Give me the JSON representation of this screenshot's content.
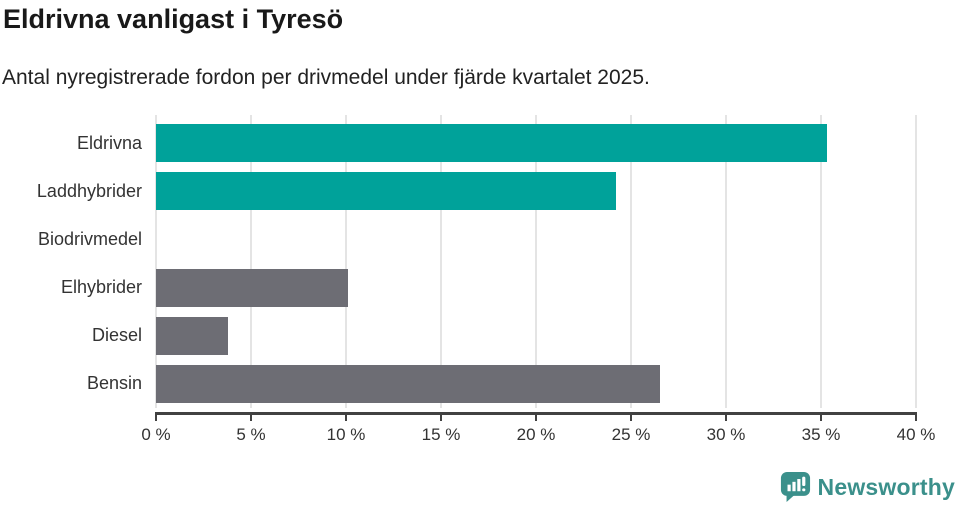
{
  "header": {
    "title": "Eldrivna vanligast i Tyresö",
    "subtitle": "Antal nyregistrerade fordon per drivmedel under fjärde kvartalet 2025."
  },
  "chart_data": {
    "type": "bar",
    "orientation": "horizontal",
    "title": "Eldrivna vanligast i Tyresö",
    "subtitle": "Antal nyregistrerade fordon per drivmedel under fjärde kvartalet 2025.",
    "categories": [
      "Eldrivna",
      "Laddhybrider",
      "Biodrivmedel",
      "Elhybrider",
      "Diesel",
      "Bensin"
    ],
    "values": [
      35.3,
      24.2,
      0,
      10.1,
      3.8,
      26.5
    ],
    "bar_colors": [
      "#00a29a",
      "#00a29a",
      "#6d6d74",
      "#6d6d74",
      "#6d6d74",
      "#6d6d74"
    ],
    "highlight_color": "#00a29a",
    "default_color": "#6d6d74",
    "xlabel": "",
    "ylabel": "",
    "xlim": [
      0,
      40
    ],
    "grid": "vertical",
    "gridline_color": "#e4e4e4",
    "axis_color": "#414141",
    "x_ticks": [
      {
        "value": 0,
        "label": "0 %"
      },
      {
        "value": 5,
        "label": "5 %"
      },
      {
        "value": 10,
        "label": "10 %"
      },
      {
        "value": 15,
        "label": "15 %"
      },
      {
        "value": 20,
        "label": "20 %"
      },
      {
        "value": 25,
        "label": "25 %"
      },
      {
        "value": 30,
        "label": "30 %"
      },
      {
        "value": 35,
        "label": "35 %"
      },
      {
        "value": 40,
        "label": "40 %"
      }
    ]
  },
  "footer": {
    "brand": "Newsworthy",
    "brand_color": "#3b908b"
  }
}
